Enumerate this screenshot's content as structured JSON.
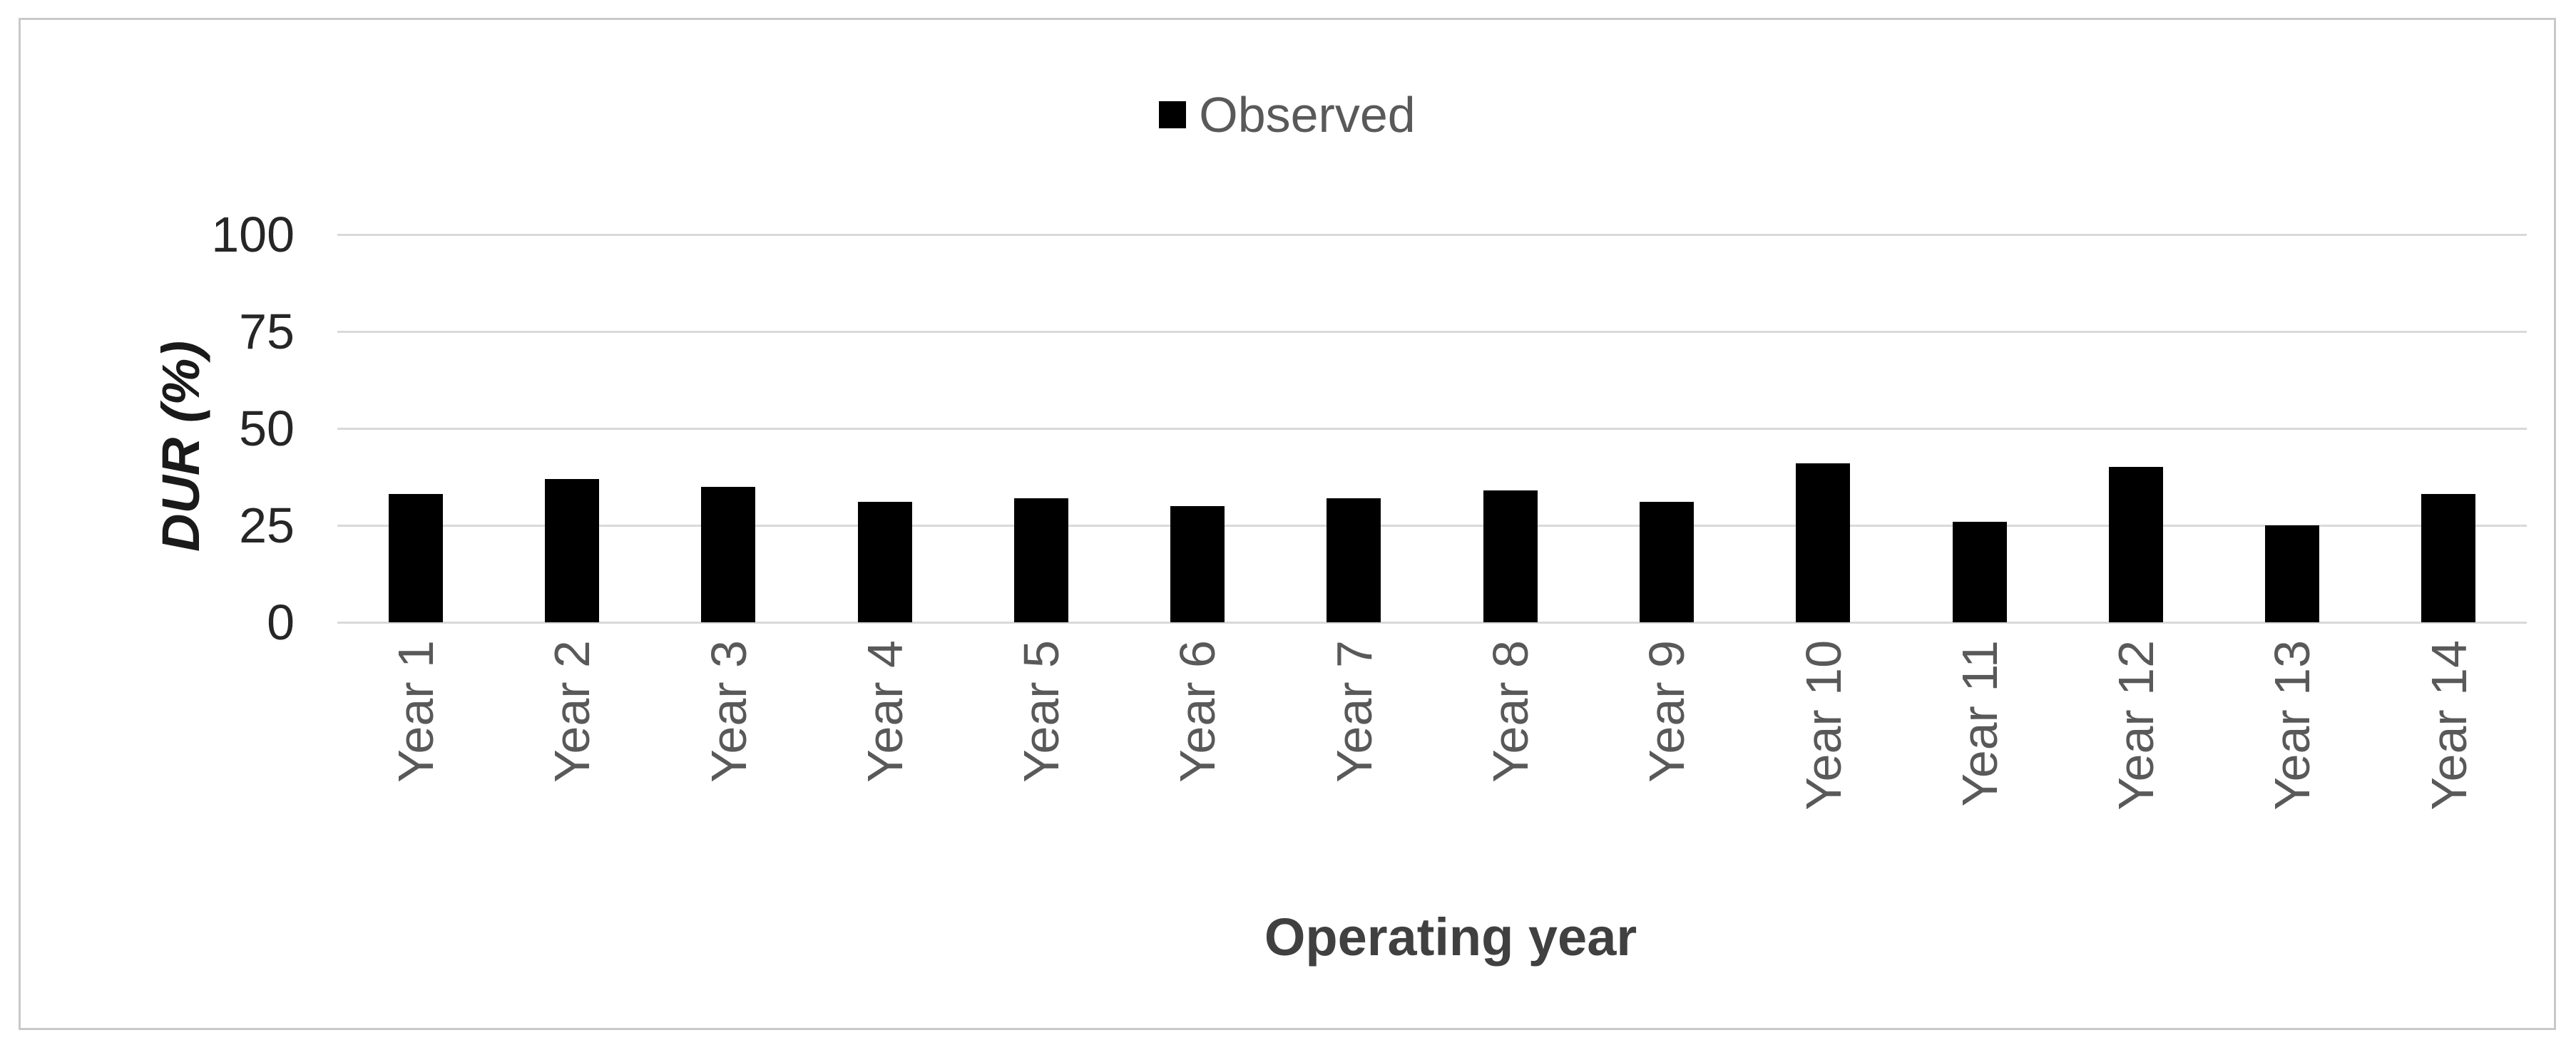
{
  "chart_data": {
    "type": "bar",
    "title": "",
    "categories": [
      "Year 1",
      "Year 2",
      "Year 3",
      "Year 4",
      "Year 5",
      "Year 6",
      "Year 7",
      "Year 8",
      "Year 9",
      "Year 10",
      "Year 11",
      "Year 12",
      "Year 13",
      "Year 14"
    ],
    "series": [
      {
        "name": "Observed",
        "values": [
          33,
          37,
          35,
          31,
          32,
          30,
          32,
          34,
          31,
          41,
          26,
          40,
          25,
          33
        ]
      }
    ],
    "xlabel": "Operating year",
    "ylabel": "DUR (%)",
    "ylim": [
      0,
      100
    ],
    "yticks": [
      0,
      25,
      50,
      75,
      100
    ],
    "grid": true,
    "legend_position": "top-center"
  },
  "colors": {
    "bar": "#000000",
    "gridline": "#d9d9d9",
    "tick_text": "#262626",
    "category_text": "#595959",
    "legend_text": "#595959",
    "axis_title": "#1a1a1a",
    "x_axis_title": "#404040",
    "frame_border": "#c9c9c9"
  }
}
